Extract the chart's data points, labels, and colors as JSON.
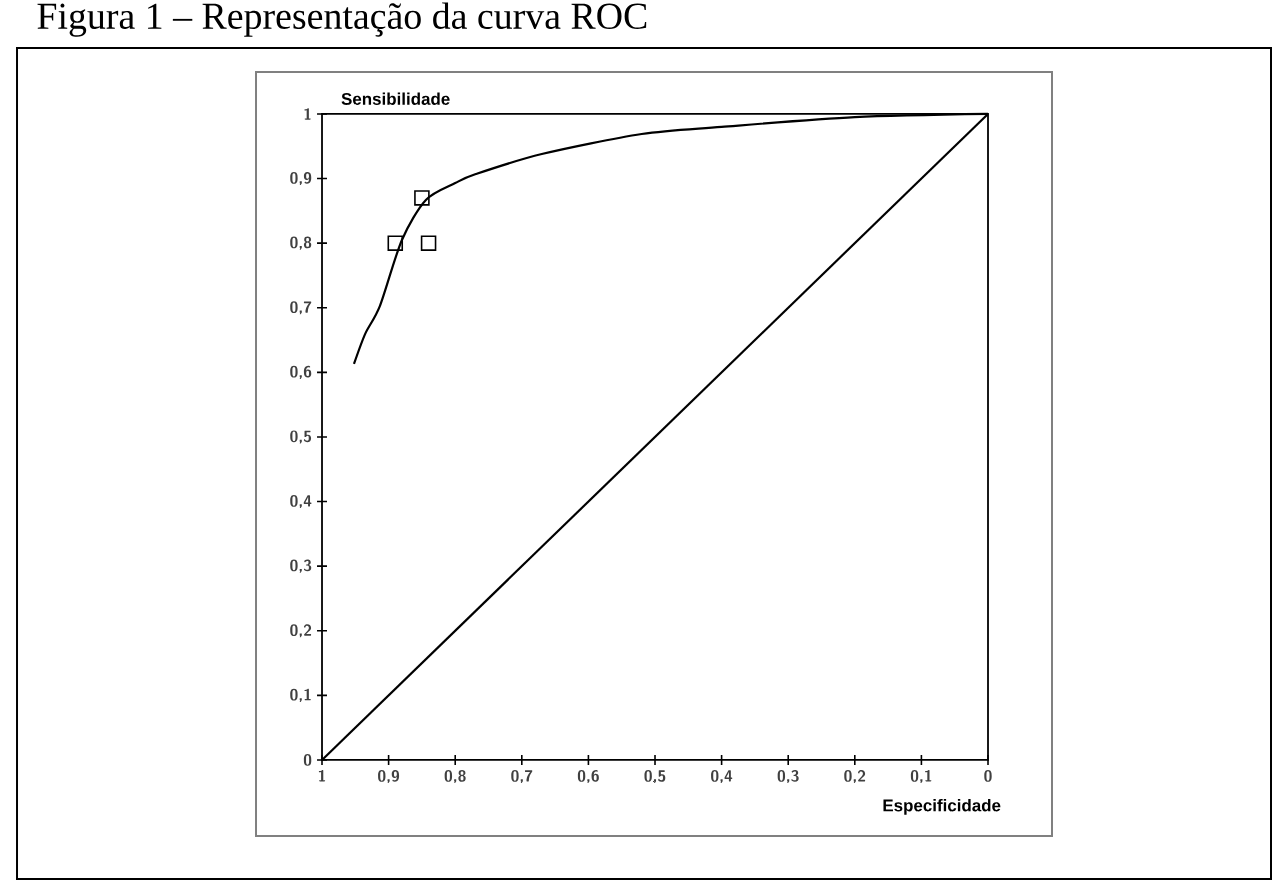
{
  "chart_data": {
    "type": "line",
    "title": "Figura 1 – Representação da curva ROC",
    "xlabel": "Especificidade",
    "ylabel": "Sensibilidade",
    "xlim": [
      1,
      0
    ],
    "ylim": [
      0,
      1
    ],
    "xticks": [
      1,
      {
        "value": 0.9,
        "label": "0,9"
      },
      {
        "value": 0.8,
        "label": "0,8"
      },
      {
        "value": 0.7,
        "label": "0,7"
      },
      {
        "value": 0.6,
        "label": "0,6"
      },
      {
        "value": 0.5,
        "label": "0,5"
      },
      {
        "value": 0.4,
        "label": "0,4"
      },
      {
        "value": 0.3,
        "label": "0,3"
      },
      {
        "value": 0.2,
        "label": "0,2"
      },
      {
        "value": 0.1,
        "label": "0,1"
      },
      0
    ],
    "yticks": [
      0,
      {
        "value": 0.1,
        "label": "0,1"
      },
      {
        "value": 0.2,
        "label": "0,2"
      },
      {
        "value": 0.3,
        "label": "0,3"
      },
      {
        "value": 0.4,
        "label": "0,4"
      },
      {
        "value": 0.5,
        "label": "0,5"
      },
      {
        "value": 0.6,
        "label": "0,6"
      },
      {
        "value": 0.7,
        "label": "0,7"
      },
      {
        "value": 0.8,
        "label": "0,8"
      },
      {
        "value": 0.9,
        "label": "0,9"
      },
      1
    ],
    "series": [
      {
        "color": "#000000",
        "marker": "none",
        "x": [
          0.952,
          0.935,
          0.913,
          0.88,
          0.844,
          0.8,
          0.769,
          0.67,
          0.52,
          0.4,
          0.2,
          0
        ],
        "values": [
          0.613,
          0.66,
          0.703,
          0.805,
          0.867,
          0.893,
          0.907,
          0.938,
          0.969,
          0.98,
          0.995,
          1
        ]
      },
      {
        "color": "#000000",
        "x": [
          1,
          0
        ],
        "values": [
          0,
          1
        ]
      },
      {
        "type": "scatter",
        "color": "#000000",
        "marker": "square",
        "x": [
          0.89,
          0.85,
          0.84
        ],
        "values": [
          0.8,
          0.87,
          0.8
        ]
      }
    ]
  }
}
